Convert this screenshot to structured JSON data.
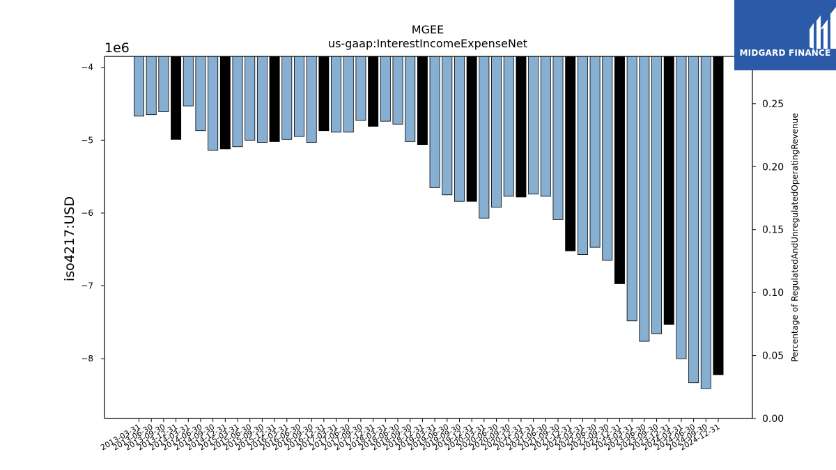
{
  "chart_data": {
    "type": "bar",
    "title": "MGEE",
    "subtitle": "us-gaap:InterestIncomeExpenseNet",
    "ylabel": "iso4217:USD",
    "y_offset_label": "1e6",
    "y2label": "Percentage of RegulatedAndUnregulatedOperatingRevenue",
    "ylim": [
      -8.82,
      -3.85
    ],
    "y_ticks": [
      "−4",
      "−5",
      "−6",
      "−7",
      "−8"
    ],
    "y_tick_values": [
      -4,
      -5,
      -6,
      -7,
      -8
    ],
    "y2lim": [
      0.0,
      0.2875
    ],
    "y2_ticks": [
      "0.00",
      "0.05",
      "0.10",
      "0.15",
      "0.20",
      "0.25"
    ],
    "y2_tick_values": [
      0.0,
      0.05,
      0.1,
      0.15,
      0.2,
      0.25
    ],
    "colors": {
      "quarterly": "#86afd2",
      "annual": "#000000",
      "edge": "#000000"
    },
    "categories": [
      "2013-03-31",
      "2013-06-30",
      "2013-09-30",
      "2013-12-31",
      "2014-03-31",
      "2014-06-30",
      "2014-09-30",
      "2014-12-31",
      "2015-03-31",
      "2015-06-30",
      "2015-09-30",
      "2015-12-31",
      "2016-03-31",
      "2016-06-30",
      "2016-09-30",
      "2016-12-31",
      "2017-03-31",
      "2017-06-30",
      "2017-09-30",
      "2017-12-31",
      "2018-03-31",
      "2018-06-30",
      "2018-09-30",
      "2018-12-31",
      "2019-03-31",
      "2019-06-30",
      "2019-09-30",
      "2019-12-31",
      "2020-03-31",
      "2020-06-30",
      "2020-09-30",
      "2020-12-31",
      "2021-03-31",
      "2021-06-30",
      "2021-09-30",
      "2021-12-31",
      "2022-03-31",
      "2022-06-30",
      "2022-09-30",
      "2022-12-31",
      "2023-03-31",
      "2023-06-30",
      "2023-09-30",
      "2023-12-31",
      "2024-03-31",
      "2024-06-30",
      "2024-09-30",
      "2024-12-31"
    ],
    "values": [
      -4.67,
      -4.65,
      -4.61,
      -4.99,
      -4.53,
      -4.87,
      -5.14,
      -5.12,
      -5.09,
      -5.0,
      -5.03,
      -5.02,
      -4.99,
      -4.95,
      -5.03,
      -4.87,
      -4.89,
      -4.89,
      -4.73,
      -4.81,
      -4.74,
      -4.78,
      -5.02,
      -5.06,
      -5.65,
      -5.75,
      -5.84,
      -5.84,
      -6.07,
      -5.92,
      -5.77,
      -5.78,
      -5.74,
      -5.77,
      -6.09,
      -6.52,
      -6.57,
      -6.47,
      -6.65,
      -6.97,
      -7.48,
      -7.76,
      -7.66,
      -7.53,
      -8.0,
      -8.33,
      -8.41,
      -8.22
    ],
    "annual": [
      false,
      false,
      false,
      true,
      false,
      false,
      false,
      true,
      false,
      false,
      false,
      true,
      false,
      false,
      false,
      true,
      false,
      false,
      false,
      true,
      false,
      false,
      false,
      true,
      false,
      false,
      false,
      true,
      false,
      false,
      false,
      true,
      false,
      false,
      false,
      true,
      false,
      false,
      false,
      true,
      false,
      false,
      false,
      true,
      false,
      false,
      false,
      true
    ]
  },
  "logo": {
    "text": "MIDGARD FINANCE"
  }
}
